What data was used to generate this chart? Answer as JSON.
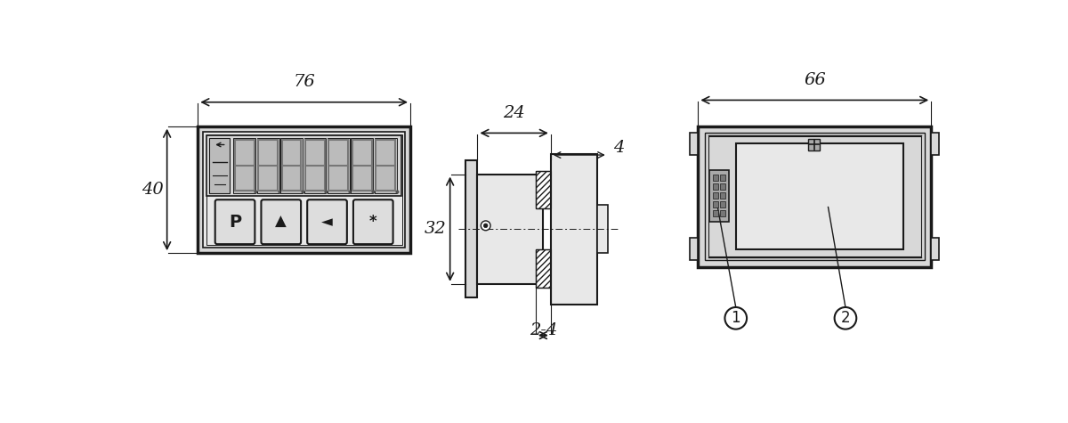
{
  "bg_color": "#ffffff",
  "line_color": "#1a1a1a",
  "gray_fill": "#cccccc",
  "mid_gray": "#d8d8d8",
  "light_gray": "#e8e8e8",
  "dark_gray": "#999999",
  "view1": {
    "label_76": "76",
    "label_40": "40"
  },
  "view2": {
    "label_24": "24",
    "label_4": "4",
    "label_32": "32",
    "label_24b": "2-4"
  },
  "view3": {
    "label_66": "66",
    "label1": "1",
    "label2": "2"
  }
}
